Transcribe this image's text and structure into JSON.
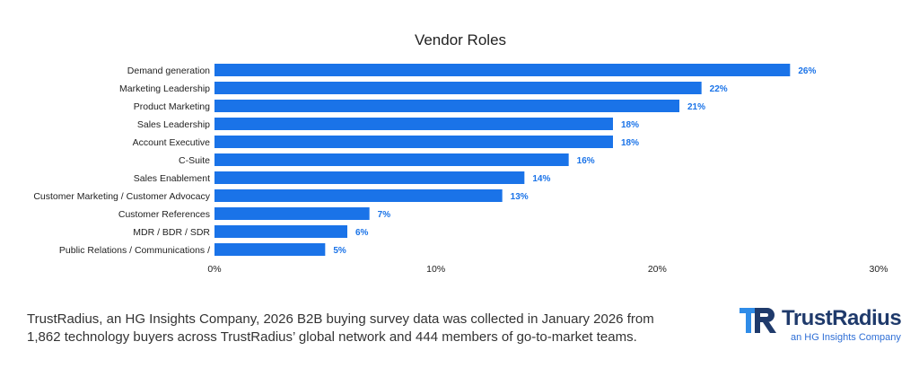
{
  "chart_data": {
    "type": "bar",
    "orientation": "horizontal",
    "title": "Vendor Roles",
    "categories": [
      "Demand generation",
      "Marketing Leadership",
      "Product Marketing",
      "Sales Leadership",
      "Account Executive",
      "C-Suite",
      "Sales Enablement",
      "Customer Marketing / Customer Advocacy",
      "Customer References",
      "MDR / BDR / SDR",
      "Public Relations / Communications /"
    ],
    "values": [
      26,
      22,
      21,
      18,
      18,
      16,
      14,
      13,
      7,
      6,
      5
    ],
    "value_labels": [
      "26%",
      "22%",
      "21%",
      "18%",
      "18%",
      "16%",
      "14%",
      "13%",
      "7%",
      "6%",
      "5%"
    ],
    "xlim": [
      0,
      30
    ],
    "x_ticks": [
      0,
      10,
      20,
      30
    ],
    "x_tick_labels": [
      "0%",
      "10%",
      "20%",
      "30%"
    ],
    "xlabel": "",
    "ylabel": "",
    "grid": false,
    "bar_color": "#1a73e8",
    "label_color": "#1a73e8"
  },
  "footer": {
    "line1": "TrustRadius, an HG Insights Company, 2026 B2B buying survey data was collected in January 2026 from",
    "line2": "1,862 technology buyers across TrustRadius’ global network and 444 members of go-to-market teams."
  },
  "logo": {
    "name": "TrustRadius",
    "tagline": "an HG Insights Company",
    "icon": "trustradius-logo-icon",
    "color_primary": "#1f3a6b",
    "color_accent": "#2f8ce8"
  }
}
